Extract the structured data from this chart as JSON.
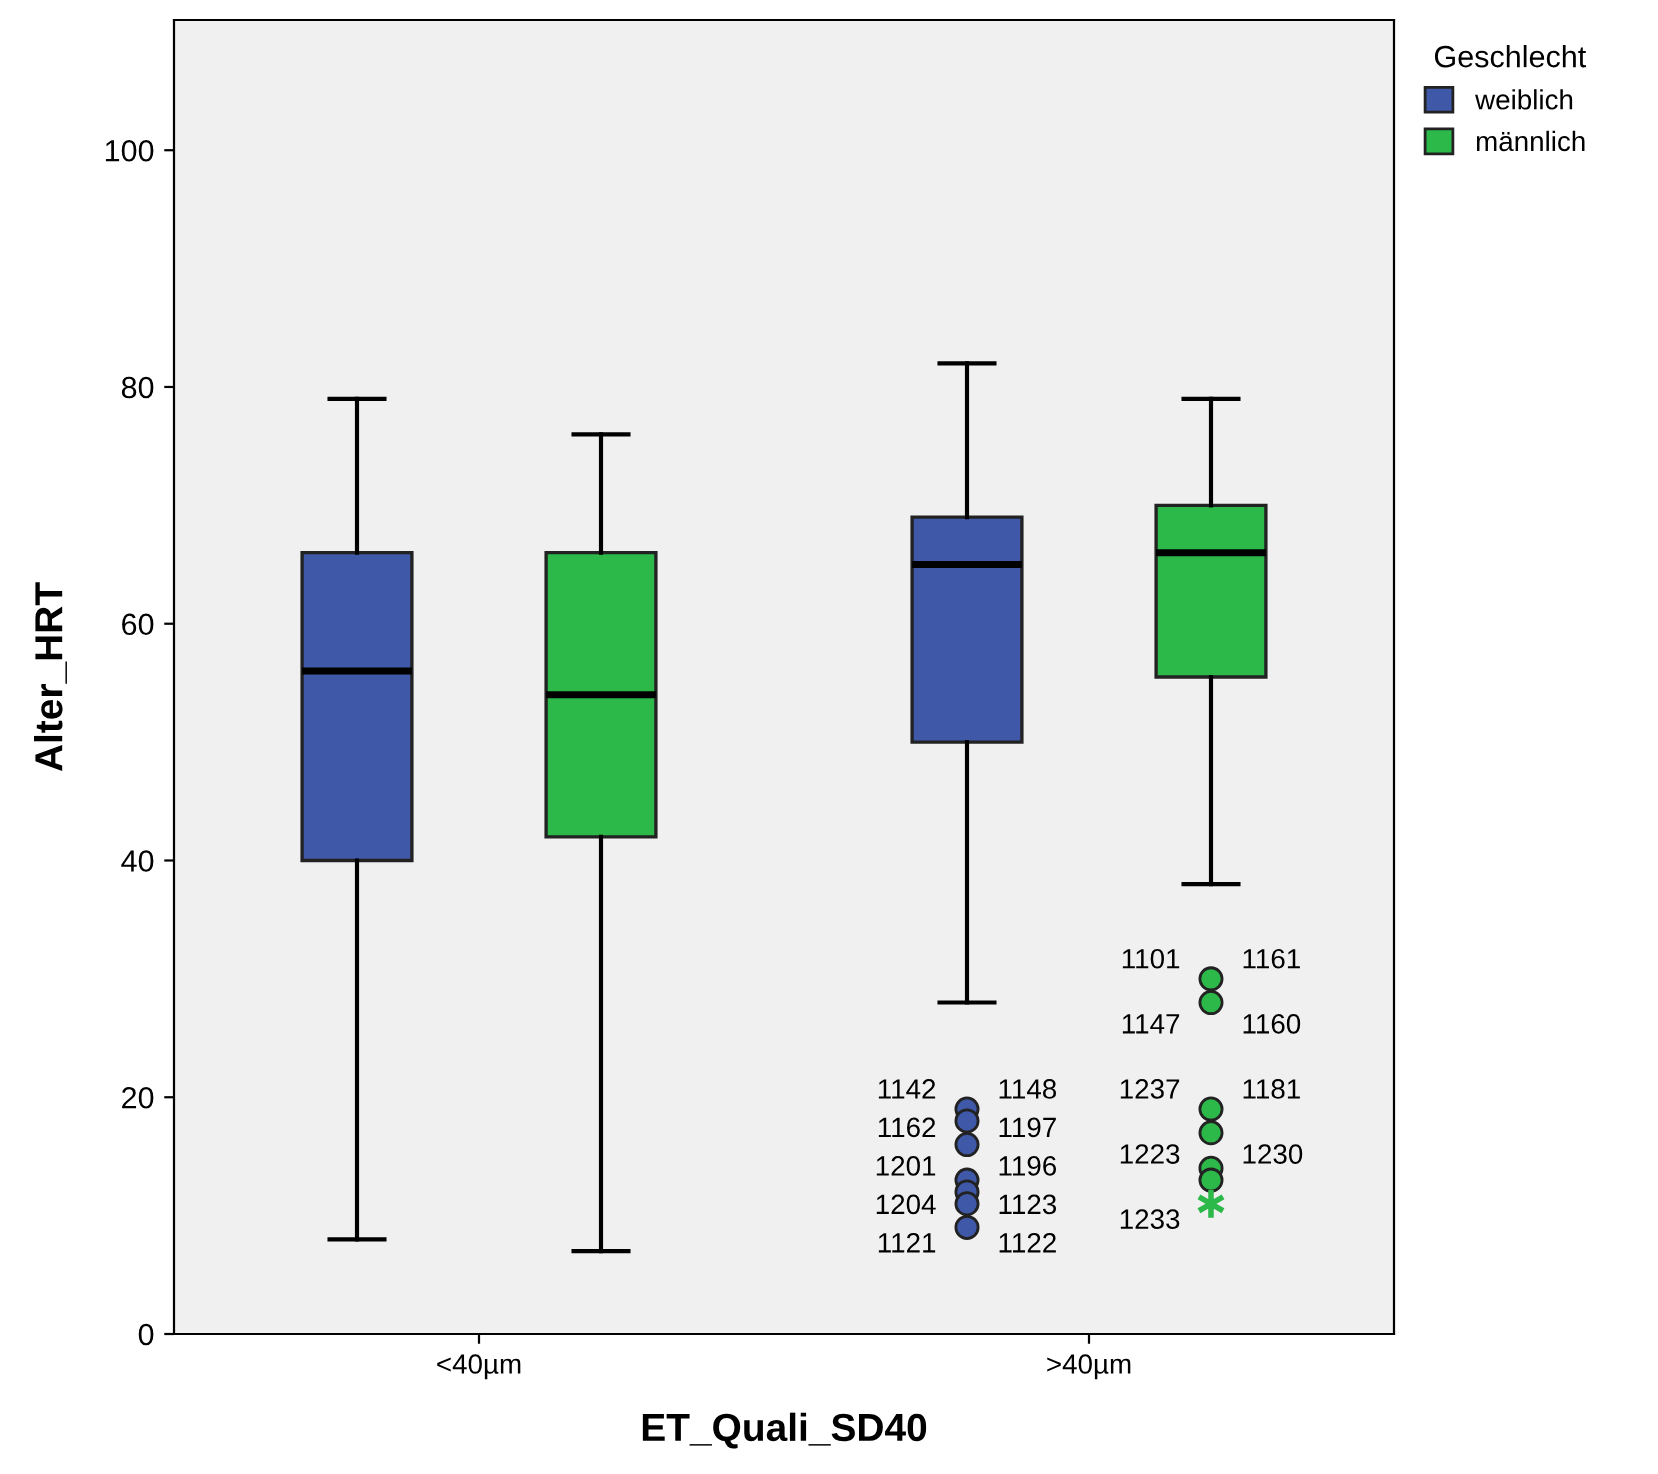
{
  "chart_data": {
    "type": "box",
    "xlabel": "ET_Quali_SD40",
    "ylabel": "Alter_HRT",
    "legend_title": "Geschlecht",
    "legend": "top right",
    "grid": false,
    "categories": [
      "<40µm",
      ">40µm"
    ],
    "ylim": [
      0,
      111
    ],
    "yticks": [
      0,
      20,
      40,
      60,
      80,
      100
    ],
    "series": [
      {
        "name": "weiblich",
        "color": "#3f58a8",
        "boxes": [
          {
            "low": 8,
            "q1": 40,
            "median": 56,
            "q3": 66,
            "high": 79
          },
          {
            "low": 28,
            "q1": 50,
            "median": 65,
            "q3": 69,
            "high": 82,
            "outliers": [
              19,
              18,
              16,
              13,
              12,
              11,
              9
            ]
          }
        ]
      },
      {
        "name": "männlich",
        "color": "#2db84a",
        "boxes": [
          {
            "low": 7,
            "q1": 42,
            "median": 54,
            "q3": 66,
            "high": 76
          },
          {
            "low": 38,
            "q1": 55.5,
            "median": 66,
            "q3": 70,
            "high": 79,
            "outliers": [
              30,
              28,
              19,
              17,
              14,
              13,
              11
            ]
          }
        ]
      }
    ],
    "annotations": [
      "1142",
      "1148",
      "1162",
      "1197",
      "1201",
      "1196",
      "1204",
      "1123",
      "1121",
      "1122",
      "1101",
      "1161",
      "1147",
      "1160",
      "1237",
      "1181",
      "1223",
      "1230",
      "1233"
    ]
  }
}
